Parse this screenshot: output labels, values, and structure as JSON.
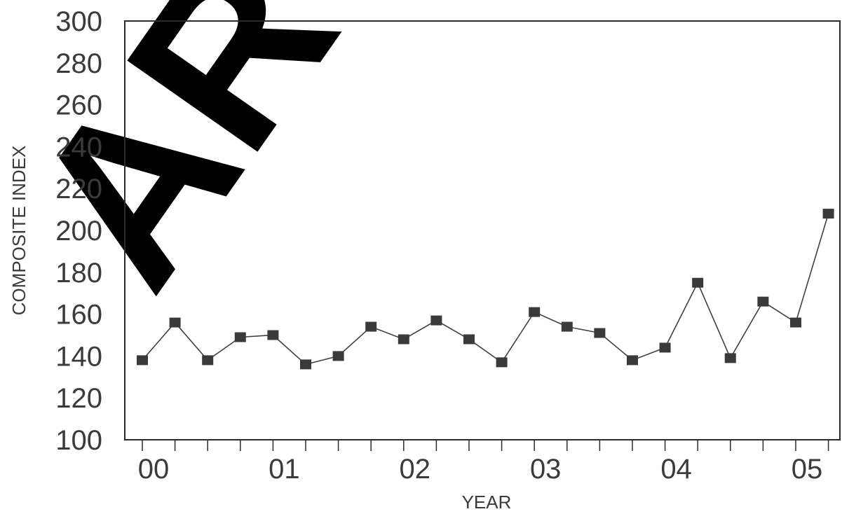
{
  "chart_data": {
    "type": "line",
    "xlabel": "YEAR",
    "ylabel": "COMPOSITE INDEX",
    "ylim": [
      100,
      300
    ],
    "yticks": [
      "100",
      "120",
      "140",
      "160",
      "180",
      "200",
      "220",
      "240",
      "260",
      "280",
      "300"
    ],
    "xlim": [
      0,
      21
    ],
    "xtick_labels": [
      "00",
      "01",
      "02",
      "03",
      "04",
      "05"
    ],
    "xtick_label_positions": [
      0,
      4,
      8,
      12,
      16,
      20
    ],
    "minor_tick_positions": [
      0,
      1,
      2,
      3,
      4,
      5,
      6,
      7,
      8,
      9,
      10,
      11,
      12,
      13,
      14,
      15,
      16,
      17,
      18,
      19,
      20,
      21
    ],
    "series": [
      {
        "x": [
          0,
          1,
          2,
          3,
          4,
          5,
          6,
          7,
          8,
          9,
          10,
          11,
          12,
          13,
          14,
          15,
          16,
          17,
          18,
          19,
          20,
          21
        ],
        "values": [
          138,
          156,
          138,
          149,
          150,
          136,
          140,
          154,
          148,
          157,
          148,
          137,
          161,
          154,
          151,
          138,
          144,
          175,
          139,
          166,
          156,
          208
        ]
      }
    ],
    "marker": "square",
    "line_color": "#404040",
    "marker_color": "#3a3a3a",
    "grid": false
  },
  "watermark": {
    "text": "ARC",
    "color": "#000000"
  }
}
